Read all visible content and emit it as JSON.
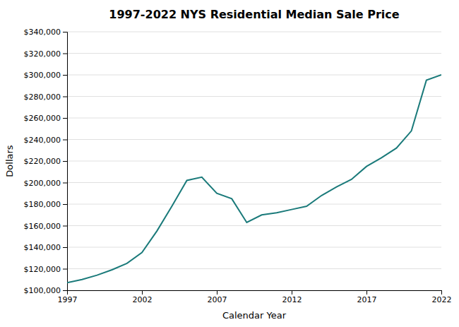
{
  "chart_data": {
    "type": "line",
    "title": "1997-2022 NYS Residential Median Sale Price",
    "xlabel": "Calendar Year",
    "ylabel": "Dollars",
    "color": "#1a7a7a",
    "x": [
      1997,
      1998,
      1999,
      2000,
      2001,
      2002,
      2003,
      2004,
      2005,
      2006,
      2007,
      2008,
      2009,
      2010,
      2011,
      2012,
      2013,
      2014,
      2015,
      2016,
      2017,
      2018,
      2019,
      2020,
      2021,
      2022
    ],
    "values": [
      107000,
      110000,
      114000,
      119000,
      125000,
      135000,
      155000,
      178000,
      202000,
      205000,
      190000,
      185000,
      163000,
      170000,
      172000,
      175000,
      178000,
      188000,
      196000,
      203000,
      215000,
      223000,
      232000,
      248000,
      295000,
      300000
    ],
    "xlim": [
      1997,
      2022
    ],
    "xticks": [
      1997,
      2002,
      2007,
      2012,
      2017,
      2022
    ],
    "ylim": [
      100000,
      340000
    ],
    "yticks": [
      {
        "value": 100000,
        "label": "$100,000"
      },
      {
        "value": 120000,
        "label": "$120,000"
      },
      {
        "value": 140000,
        "label": "$140,000"
      },
      {
        "value": 160000,
        "label": "$160,000"
      },
      {
        "value": 180000,
        "label": "$180,000"
      },
      {
        "value": 200000,
        "label": "$200,000"
      },
      {
        "value": 220000,
        "label": "$220,000"
      },
      {
        "value": 240000,
        "label": "$240,000"
      },
      {
        "value": 260000,
        "label": "$260,000"
      },
      {
        "value": 280000,
        "label": "$280,000"
      },
      {
        "value": 300000,
        "label": "$300,000"
      },
      {
        "value": 320000,
        "label": "$320,000"
      },
      {
        "value": 340000,
        "label": "$340,000"
      }
    ],
    "grid": true
  }
}
